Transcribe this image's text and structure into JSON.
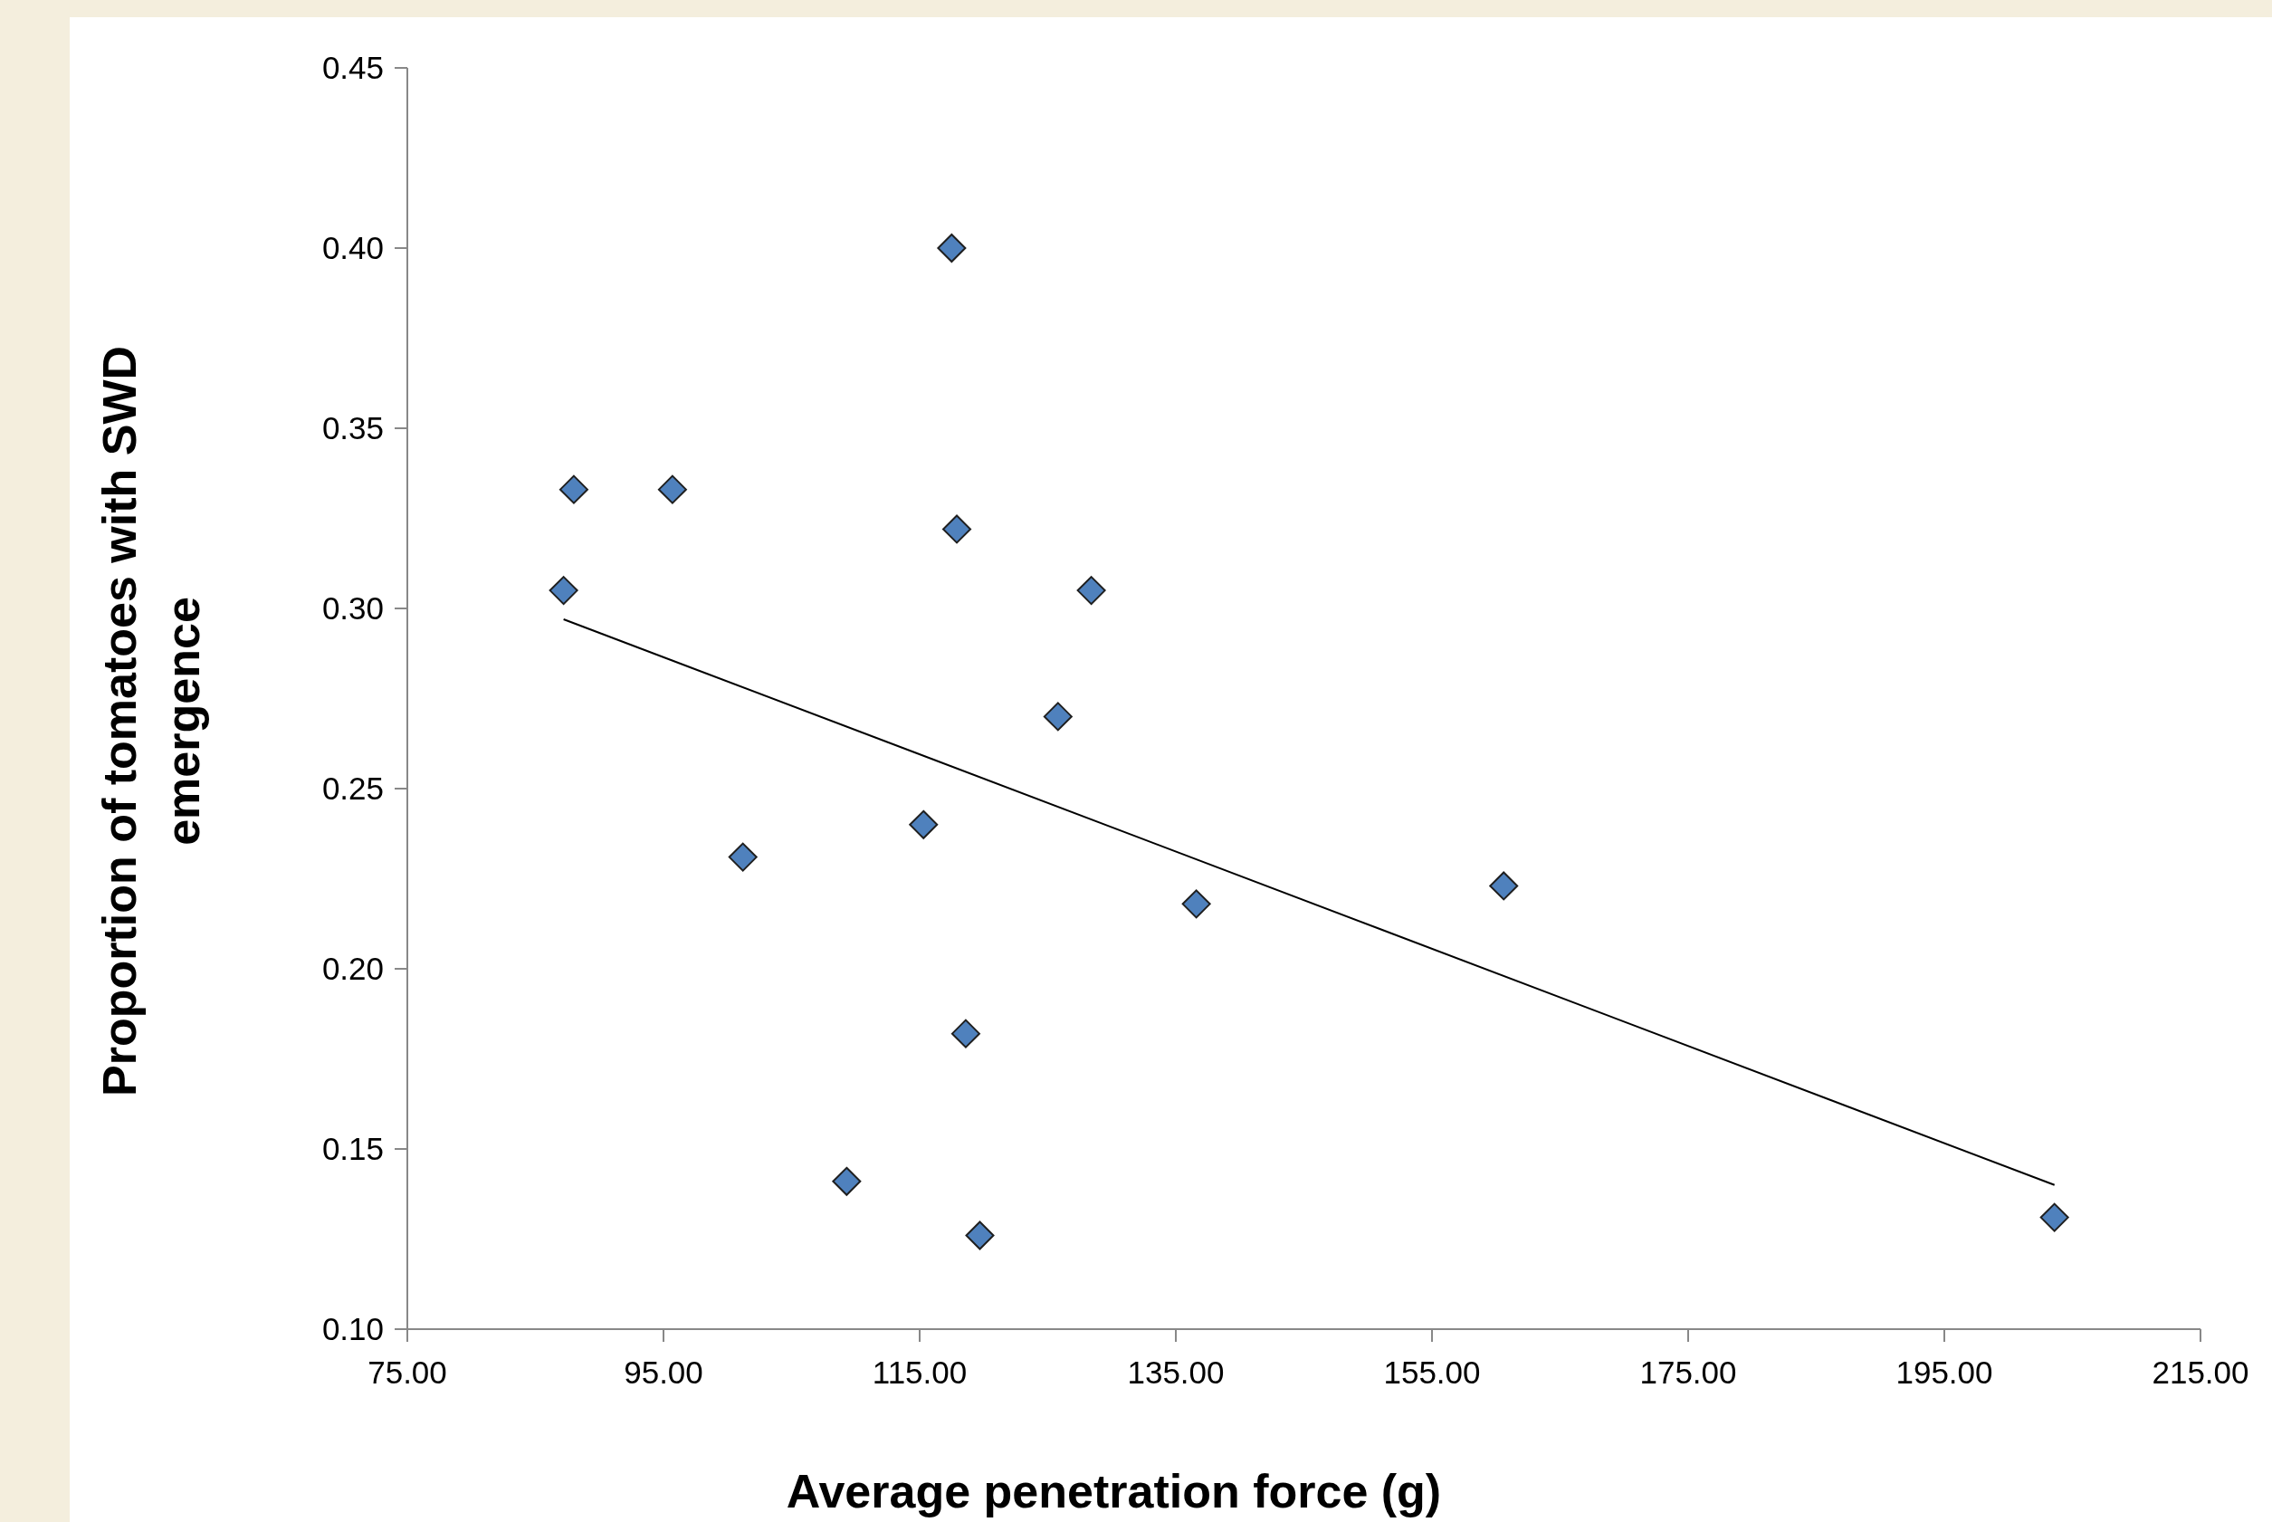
{
  "chart_data": {
    "type": "scatter",
    "xlabel": "Average penetration force (g)",
    "ylabel": "Proportion of tomatoes with SWD emergence",
    "xlim": [
      75,
      215
    ],
    "xticks": [
      {
        "value": 75,
        "label": "75.00"
      },
      {
        "value": 95,
        "label": "95.00"
      },
      {
        "value": 115,
        "label": "115.00"
      },
      {
        "value": 135,
        "label": "135.00"
      },
      {
        "value": 155,
        "label": "155.00"
      },
      {
        "value": 175,
        "label": "175.00"
      },
      {
        "value": 195,
        "label": "195.00"
      },
      {
        "value": 215,
        "label": "215.00"
      }
    ],
    "ylim": [
      0.1,
      0.45
    ],
    "yticks": [
      {
        "value": 0.1,
        "label": "0.10"
      },
      {
        "value": 0.15,
        "label": "0.15"
      },
      {
        "value": 0.2,
        "label": "0.20"
      },
      {
        "value": 0.25,
        "label": "0.25"
      },
      {
        "value": 0.3,
        "label": "0.30"
      },
      {
        "value": 0.35,
        "label": "0.35"
      },
      {
        "value": 0.4,
        "label": "0.40"
      },
      {
        "value": 0.45,
        "label": "0.45"
      }
    ],
    "grid": false,
    "series": [
      {
        "color": "#4f81bd",
        "marker": "diamond",
        "x": [
          117.5,
          88.0,
          95.7,
          117.9,
          87.2,
          128.4,
          125.8,
          115.3,
          101.2,
          136.6,
          160.6,
          118.6,
          109.3,
          119.7,
          203.6
        ],
        "values": [
          0.4,
          0.333,
          0.333,
          0.322,
          0.305,
          0.305,
          0.27,
          0.24,
          0.231,
          0.218,
          0.223,
          0.182,
          0.141,
          0.126,
          0.131
        ]
      },
      {
        "type": "line",
        "color": "#000000",
        "line_style": "solid",
        "marker": "none",
        "x": [
          87.2,
          203.6
        ],
        "values": [
          0.297,
          0.14
        ]
      }
    ]
  }
}
